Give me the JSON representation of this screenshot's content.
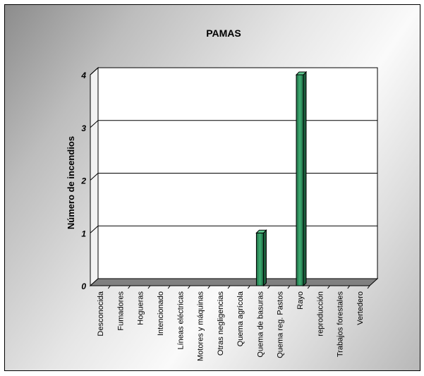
{
  "chart_data": {
    "type": "bar",
    "title": "PAMAS",
    "xlabel": "",
    "ylabel": "Número de incendios",
    "categories": [
      "Desconocida",
      "Fumadores",
      "Hogueras",
      "Intencionado",
      "Líneas eléctricas",
      "Motores y máquinas",
      "Otras negligencias",
      "Quema agrícola",
      "Quema de basuras",
      "Quema reg. Pastos",
      "Rayo",
      "reproducción",
      "Trabajos forestales",
      "Vertedero"
    ],
    "values": [
      0,
      0,
      0,
      0,
      0,
      0,
      0,
      0,
      1,
      0,
      4,
      0,
      0,
      0
    ],
    "yticks": [
      "0",
      "1",
      "2",
      "3",
      "4"
    ],
    "ylim": [
      0,
      4
    ],
    "grid": true,
    "legend": "none",
    "bar_color": "#2e8b57"
  }
}
